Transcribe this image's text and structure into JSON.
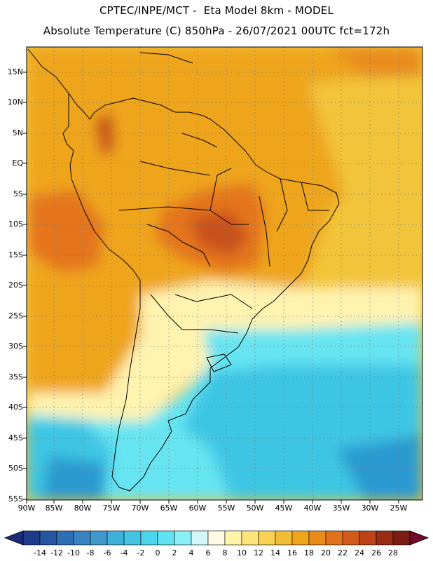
{
  "header": {
    "line1": "CPTEC/INPE/MCT -  Eta Model 8km - MODEL",
    "line2": "Absolute Temperature (C) 850hPa - 26/07/2021 00UTC fct=172h"
  },
  "map": {
    "lat_labels": [
      "15N",
      "10N",
      "5N",
      "EQ",
      "5S",
      "10S",
      "15S",
      "20S",
      "25S",
      "30S",
      "35S",
      "40S",
      "45S",
      "50S",
      "55S"
    ],
    "lon_labels": [
      "90W",
      "85W",
      "80W",
      "75W",
      "70W",
      "65W",
      "60W",
      "55W",
      "50W",
      "45W",
      "40W",
      "35W",
      "30W",
      "25W"
    ],
    "lat_range": [
      -55,
      19
    ],
    "lon_range": [
      -90,
      -19
    ],
    "grid": "dotted",
    "field_colors": {
      "warm_land": "#eea51c",
      "hot_core": "#e4741c",
      "hot_peak": "#c9511a",
      "mild_ocean_north": "#f2c43a",
      "cool_band": "#fff3b0",
      "cold_ocean": "#66e4f2",
      "colder": "#3ec6e4",
      "coldest": "#2b9ad0",
      "coast": "#000000"
    }
  },
  "colorbar": {
    "labels": [
      "-14",
      "-12",
      "-10",
      "-8",
      "-6",
      "-4",
      "-2",
      "0",
      "2",
      "4",
      "6",
      "8",
      "10",
      "12",
      "14",
      "16",
      "18",
      "20",
      "22",
      "24",
      "26",
      "28"
    ],
    "colors": [
      "#1e3c8c",
      "#2456a2",
      "#2e6eb4",
      "#3784c0",
      "#3f98cc",
      "#3fb0da",
      "#42c4e2",
      "#4cd6ec",
      "#5ee4f2",
      "#8af0f8",
      "#d2f6fa",
      "#fffae2",
      "#fff4a8",
      "#fde47a",
      "#f8d052",
      "#f2bc34",
      "#eea51c",
      "#e98c1c",
      "#e2721a",
      "#d45a1c",
      "#bc4218",
      "#9a2c14",
      "#7a1c12"
    ],
    "left_arrow": "#1a2a7a",
    "right_arrow": "#6e0a2a"
  }
}
